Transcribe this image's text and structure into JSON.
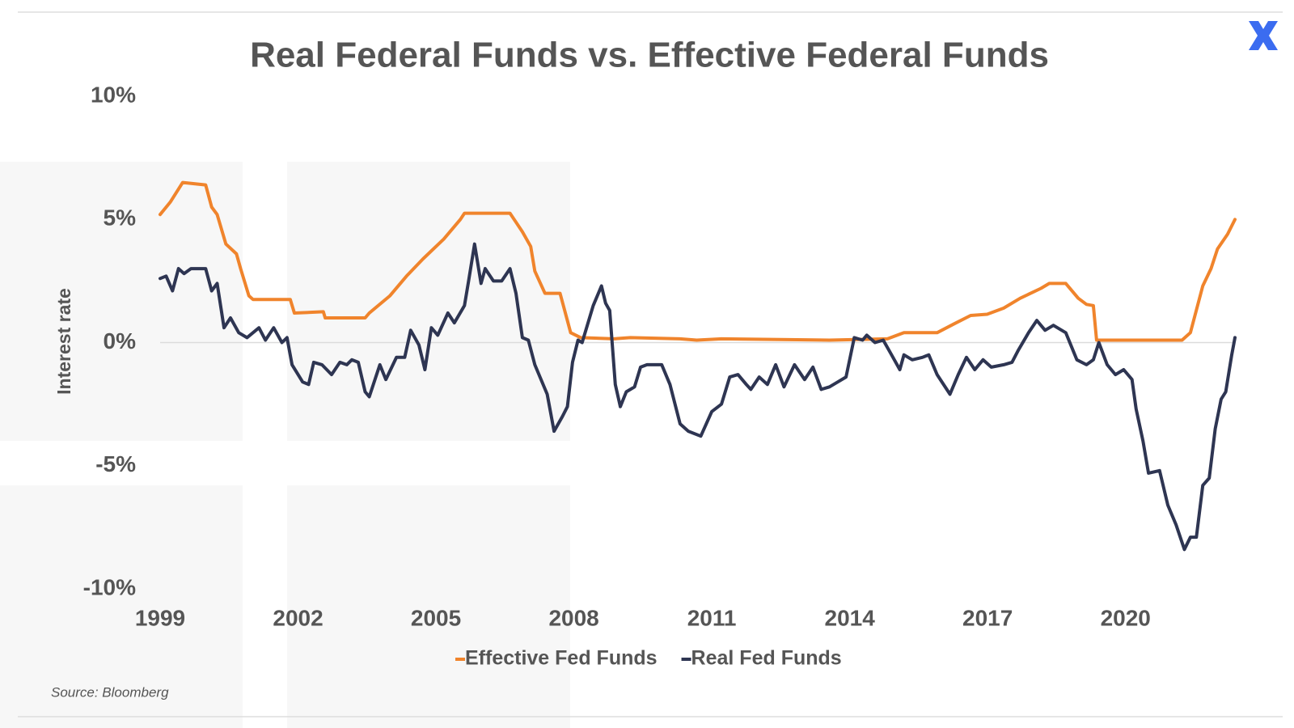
{
  "chart_data": {
    "type": "line",
    "title": "Real Federal Funds vs. Effective Federal Funds",
    "y_label": "Interest rate",
    "source": "Source: Bloomberg",
    "xlim": [
      1999,
      2022.38
    ],
    "xticks": [
      1999,
      2002,
      2005,
      2008,
      2011,
      2014,
      2017,
      2020
    ],
    "ylim": [
      -10,
      10
    ],
    "yticks": [
      {
        "value": 10,
        "label": "10%"
      },
      {
        "value": 5,
        "label": "5%"
      },
      {
        "value": 0,
        "label": "0%"
      },
      {
        "value": -5,
        "label": "-5%"
      },
      {
        "value": -10,
        "label": "-10%"
      }
    ],
    "legend": "bottom",
    "series": [
      {
        "name": "Effective Fed Funds",
        "color": "#f0842c",
        "x": [
          1999,
          1999.22,
          1999.49,
          1999.99,
          2000.12,
          2000.24,
          2000.43,
          2000.66,
          2000.75,
          2000.93,
          2001.02,
          2001.83,
          2001.92,
          2002.55,
          2002.59,
          2003.46,
          2003.55,
          2004.0,
          2004.36,
          2004.72,
          2005.17,
          2005.53,
          2005.62,
          2006.61,
          2006.88,
          2007.06,
          2007.15,
          2007.37,
          2007.7,
          2007.93,
          2008.15,
          2008.87,
          2009.23,
          2010.31,
          2010.67,
          2011.21,
          2013.56,
          2014.82,
          2015.18,
          2015.9,
          2016.26,
          2016.63,
          2016.99,
          2017.35,
          2017.71,
          2018.16,
          2018.34,
          2018.7,
          2018.97,
          2019.15,
          2019.3,
          2019.37,
          2021.23,
          2021.41,
          2021.68,
          2021.86,
          2022.0,
          2022.22,
          2022.38
        ],
        "values": [
          5.2,
          5.7,
          6.5,
          6.4,
          5.5,
          5.2,
          4.0,
          3.6,
          3.0,
          1.9,
          1.75,
          1.75,
          1.2,
          1.25,
          1.0,
          1.0,
          1.2,
          1.9,
          2.7,
          3.4,
          4.2,
          5.0,
          5.25,
          5.25,
          4.5,
          3.9,
          2.9,
          2.0,
          2.0,
          0.4,
          0.2,
          0.15,
          0.2,
          0.15,
          0.1,
          0.15,
          0.1,
          0.15,
          0.4,
          0.4,
          0.75,
          1.1,
          1.15,
          1.4,
          1.8,
          2.2,
          2.4,
          2.4,
          1.8,
          1.55,
          1.5,
          0.1,
          0.1,
          0.4,
          2.3,
          3.0,
          3.8,
          4.4,
          5.0
        ]
      },
      {
        "name": "Real Fed Funds",
        "color": "#2e3552",
        "x": [
          1999,
          1999.13,
          1999.27,
          1999.4,
          1999.52,
          1999.67,
          1999.99,
          2000.12,
          2000.24,
          2000.39,
          2000.53,
          2000.71,
          2000.89,
          2001.15,
          2001.29,
          2001.47,
          2001.65,
          2001.76,
          2001.87,
          2002.1,
          2002.23,
          2002.34,
          2002.52,
          2002.73,
          2002.91,
          2003.06,
          2003.17,
          2003.31,
          2003.46,
          2003.55,
          2003.78,
          2003.91,
          2004.14,
          2004.32,
          2004.45,
          2004.63,
          2004.76,
          2004.9,
          2005.04,
          2005.26,
          2005.4,
          2005.62,
          2005.71,
          2005.84,
          2005.98,
          2006.07,
          2006.25,
          2006.43,
          2006.61,
          2006.74,
          2006.88,
          2007.01,
          2007.15,
          2007.42,
          2007.57,
          2007.75,
          2007.86,
          2007.97,
          2008.09,
          2008.18,
          2008.42,
          2008.6,
          2008.69,
          2008.78,
          2008.9,
          2009.01,
          2009.14,
          2009.32,
          2009.45,
          2009.59,
          2009.91,
          2010.09,
          2010.31,
          2010.49,
          2010.76,
          2011.0,
          2011.21,
          2011.39,
          2011.57,
          2011.75,
          2011.85,
          2012.03,
          2012.21,
          2012.39,
          2012.57,
          2012.8,
          2013.02,
          2013.2,
          2013.38,
          2013.56,
          2013.74,
          2013.92,
          2014.1,
          2014.28,
          2014.37,
          2014.55,
          2014.73,
          2014.91,
          2015.09,
          2015.18,
          2015.36,
          2015.58,
          2015.72,
          2015.9,
          2016.18,
          2016.36,
          2016.54,
          2016.72,
          2016.9,
          2017.08,
          2017.35,
          2017.53,
          2017.67,
          2017.89,
          2018.07,
          2018.25,
          2018.43,
          2018.7,
          2018.94,
          2019.15,
          2019.3,
          2019.42,
          2019.6,
          2019.78,
          2019.96,
          2020.14,
          2020.23,
          2020.38,
          2020.5,
          2020.74,
          2020.92,
          2021.1,
          2021.28,
          2021.41,
          2021.54,
          2021.68,
          2021.82,
          2021.95,
          2022.08,
          2022.18,
          2022.31,
          2022.38
        ],
        "values": [
          2.6,
          2.7,
          2.1,
          3.0,
          2.8,
          3.0,
          3.0,
          2.1,
          2.4,
          0.6,
          1.0,
          0.4,
          0.2,
          0.6,
          0.1,
          0.6,
          0.0,
          0.2,
          -0.9,
          -1.6,
          -1.7,
          -0.8,
          -0.9,
          -1.3,
          -0.8,
          -0.9,
          -0.7,
          -0.8,
          -2.0,
          -2.2,
          -0.9,
          -1.5,
          -0.6,
          -0.6,
          0.5,
          -0.1,
          -1.1,
          0.6,
          0.3,
          1.2,
          0.8,
          1.5,
          2.5,
          4.0,
          2.4,
          3.0,
          2.5,
          2.5,
          3.0,
          2.0,
          0.2,
          0.1,
          -0.9,
          -2.1,
          -3.6,
          -3.0,
          -2.6,
          -0.8,
          0.1,
          0.0,
          1.5,
          2.3,
          1.6,
          1.3,
          -1.7,
          -2.6,
          -2.0,
          -1.8,
          -1.0,
          -0.9,
          -0.9,
          -1.7,
          -3.3,
          -3.6,
          -3.8,
          -2.8,
          -2.5,
          -1.4,
          -1.3,
          -1.7,
          -1.9,
          -1.4,
          -1.7,
          -0.9,
          -1.8,
          -0.9,
          -1.5,
          -1.0,
          -1.9,
          -1.8,
          -1.6,
          -1.4,
          0.2,
          0.1,
          0.3,
          0.0,
          0.1,
          -0.5,
          -1.1,
          -0.5,
          -0.7,
          -0.6,
          -0.5,
          -1.3,
          -2.1,
          -1.3,
          -0.6,
          -1.1,
          -0.7,
          -1.0,
          -0.9,
          -0.8,
          -0.3,
          0.4,
          0.9,
          0.5,
          0.7,
          0.4,
          -0.7,
          -0.9,
          -0.7,
          0.0,
          -0.9,
          -1.3,
          -1.1,
          -1.5,
          -2.7,
          -4.0,
          -5.3,
          -5.2,
          -6.6,
          -7.4,
          -8.4,
          -7.9,
          -7.9,
          -5.8,
          -5.5,
          -3.5,
          -2.3,
          -2.0,
          -0.5,
          0.2
        ]
      }
    ]
  }
}
